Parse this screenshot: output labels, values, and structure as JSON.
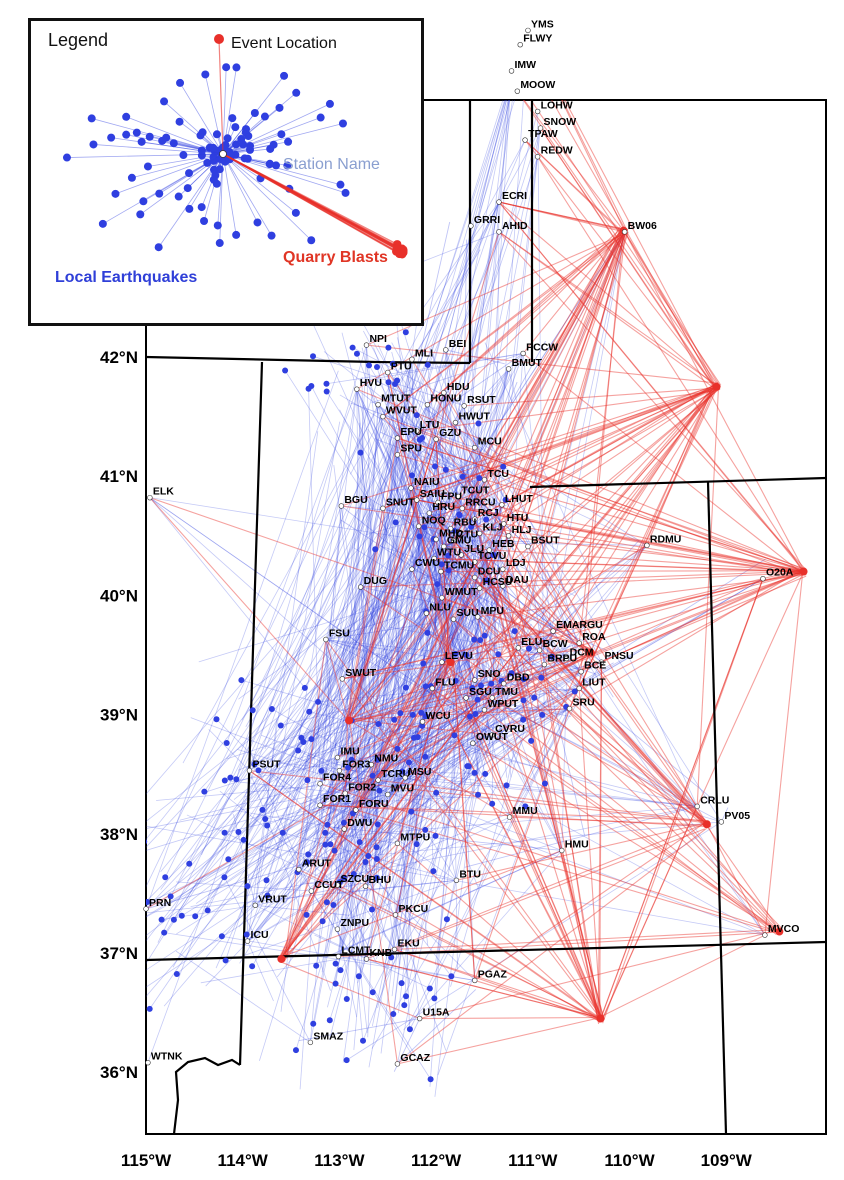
{
  "colors": {
    "earthquake": "#2f3fe0",
    "quarry": "#e8302a",
    "station": "#ffffff",
    "border": "#000000"
  },
  "legend": {
    "title": "Legend",
    "event_location": "Event Location",
    "station_name": "Station Name",
    "quarry_blasts": "Quarry Blasts",
    "local_earthquakes": "Local Earthquakes"
  },
  "latitude_labels": [
    "42°N",
    "41°N",
    "40°N",
    "39°N",
    "38°N",
    "37°N",
    "36°N"
  ],
  "longitude_labels": [
    "115°W",
    "114°W",
    "113°W",
    "112°W",
    "111°W",
    "110°W",
    "109°W"
  ],
  "stations": [
    {
      "name": "YMS",
      "lon": -111.05,
      "lat": 44.74
    },
    {
      "name": "FLWY",
      "lon": -111.13,
      "lat": 44.62
    },
    {
      "name": "IMW",
      "lon": -111.22,
      "lat": 44.4
    },
    {
      "name": "MOOW",
      "lon": -111.16,
      "lat": 44.23
    },
    {
      "name": "LOHW",
      "lon": -110.95,
      "lat": 44.06
    },
    {
      "name": "SNOW",
      "lon": -110.92,
      "lat": 43.92
    },
    {
      "name": "TPAW",
      "lon": -111.08,
      "lat": 43.82
    },
    {
      "name": "REDW",
      "lon": -110.95,
      "lat": 43.68
    },
    {
      "name": "ECRI",
      "lon": -111.35,
      "lat": 43.3
    },
    {
      "name": "GRRI",
      "lon": -111.64,
      "lat": 43.1
    },
    {
      "name": "AHID",
      "lon": -111.35,
      "lat": 43.05
    },
    {
      "name": "BW06",
      "lon": -110.05,
      "lat": 43.05
    },
    {
      "name": "NPI",
      "lon": -112.72,
      "lat": 42.1
    },
    {
      "name": "BEI",
      "lon": -111.9,
      "lat": 42.06
    },
    {
      "name": "PCCW",
      "lon": -111.1,
      "lat": 42.03
    },
    {
      "name": "MLI",
      "lon": -112.25,
      "lat": 41.98
    },
    {
      "name": "PTU",
      "lon": -112.5,
      "lat": 41.87
    },
    {
      "name": "BMUT",
      "lon": -111.25,
      "lat": 41.9
    },
    {
      "name": "HVU",
      "lon": -112.82,
      "lat": 41.73
    },
    {
      "name": "HDU",
      "lon": -111.92,
      "lat": 41.7
    },
    {
      "name": "MTUT",
      "lon": -112.6,
      "lat": 41.6
    },
    {
      "name": "HONU",
      "lon": -112.09,
      "lat": 41.6
    },
    {
      "name": "RSUT",
      "lon": -111.71,
      "lat": 41.59
    },
    {
      "name": "WVUT",
      "lon": -112.55,
      "lat": 41.5
    },
    {
      "name": "HWUT",
      "lon": -111.8,
      "lat": 41.45
    },
    {
      "name": "LTU",
      "lon": -112.2,
      "lat": 41.38
    },
    {
      "name": "EPU",
      "lon": -112.4,
      "lat": 41.32
    },
    {
      "name": "GZU",
      "lon": -112.0,
      "lat": 41.31
    },
    {
      "name": "MCU",
      "lon": -111.6,
      "lat": 41.24
    },
    {
      "name": "SPU",
      "lon": -112.4,
      "lat": 41.18
    },
    {
      "name": "TCU",
      "lon": -111.5,
      "lat": 40.97
    },
    {
      "name": "NAIU",
      "lon": -112.26,
      "lat": 40.9
    },
    {
      "name": "TCUT",
      "lon": -111.77,
      "lat": 40.83
    },
    {
      "name": "SAIU",
      "lon": -112.2,
      "lat": 40.8
    },
    {
      "name": "FPU",
      "lon": -111.98,
      "lat": 40.78
    },
    {
      "name": "LHUT",
      "lon": -111.32,
      "lat": 40.76
    },
    {
      "name": "BGU",
      "lon": -112.98,
      "lat": 40.75
    },
    {
      "name": "SNUT",
      "lon": -112.55,
      "lat": 40.73
    },
    {
      "name": "RRCU",
      "lon": -111.73,
      "lat": 40.73
    },
    {
      "name": "HRU",
      "lon": -112.07,
      "lat": 40.69
    },
    {
      "name": "RCJ",
      "lon": -111.6,
      "lat": 40.64
    },
    {
      "name": "HTU",
      "lon": -111.3,
      "lat": 40.6
    },
    {
      "name": "NOQ",
      "lon": -112.18,
      "lat": 40.58
    },
    {
      "name": "RBU",
      "lon": -111.85,
      "lat": 40.56
    },
    {
      "name": "KLJ",
      "lon": -111.55,
      "lat": 40.52
    },
    {
      "name": "HLJ",
      "lon": -111.25,
      "lat": 40.5
    },
    {
      "name": "MHD",
      "lon": -112.0,
      "lat": 40.47
    },
    {
      "name": "CTU",
      "lon": -111.82,
      "lat": 40.46
    },
    {
      "name": "GMU",
      "lon": -111.92,
      "lat": 40.41
    },
    {
      "name": "BSUT",
      "lon": -111.05,
      "lat": 40.41
    },
    {
      "name": "HEB",
      "lon": -111.45,
      "lat": 40.38
    },
    {
      "name": "RDMU",
      "lon": -109.82,
      "lat": 40.42
    },
    {
      "name": "JLU",
      "lon": -111.74,
      "lat": 40.34
    },
    {
      "name": "WTU",
      "lon": -112.02,
      "lat": 40.31
    },
    {
      "name": "TCVU",
      "lon": -111.6,
      "lat": 40.28
    },
    {
      "name": "LDJ",
      "lon": -111.31,
      "lat": 40.22
    },
    {
      "name": "CWU",
      "lon": -112.25,
      "lat": 40.22
    },
    {
      "name": "TCMU",
      "lon": -111.95,
      "lat": 40.2
    },
    {
      "name": "DCU",
      "lon": -111.6,
      "lat": 40.15
    },
    {
      "name": "DAU",
      "lon": -111.31,
      "lat": 40.08
    },
    {
      "name": "O20A",
      "lon": -108.62,
      "lat": 40.14
    },
    {
      "name": "DUG",
      "lon": -112.78,
      "lat": 40.07
    },
    {
      "name": "HCSU",
      "lon": -111.55,
      "lat": 40.06
    },
    {
      "name": "WMUT",
      "lon": -111.94,
      "lat": 39.98
    },
    {
      "name": "NLU",
      "lon": -112.1,
      "lat": 39.85
    },
    {
      "name": "SUU",
      "lon": -111.82,
      "lat": 39.8
    },
    {
      "name": "MPU",
      "lon": -111.57,
      "lat": 39.82
    },
    {
      "name": "EMARGU",
      "lon": -110.79,
      "lat": 39.7
    },
    {
      "name": "FSU",
      "lon": -113.14,
      "lat": 39.63
    },
    {
      "name": "ROA",
      "lon": -110.52,
      "lat": 39.6
    },
    {
      "name": "ELU",
      "lon": -111.15,
      "lat": 39.56
    },
    {
      "name": "BCW",
      "lon": -110.93,
      "lat": 39.54
    },
    {
      "name": "DCM",
      "lon": -110.65,
      "lat": 39.47
    },
    {
      "name": "PNSU",
      "lon": -110.29,
      "lat": 39.44
    },
    {
      "name": "BRPU",
      "lon": -110.88,
      "lat": 39.42
    },
    {
      "name": "LEVU",
      "lon": -111.94,
      "lat": 39.44
    },
    {
      "name": "BCE",
      "lon": -110.5,
      "lat": 39.36
    },
    {
      "name": "SWUT",
      "lon": -112.97,
      "lat": 39.3
    },
    {
      "name": "SNO",
      "lon": -111.6,
      "lat": 39.29
    },
    {
      "name": "DBD",
      "lon": -111.3,
      "lat": 39.26
    },
    {
      "name": "LIUT",
      "lon": -110.52,
      "lat": 39.22
    },
    {
      "name": "FLU",
      "lon": -112.04,
      "lat": 39.22
    },
    {
      "name": "SGU",
      "lon": -111.69,
      "lat": 39.14
    },
    {
      "name": "TMU",
      "lon": -111.42,
      "lat": 39.14
    },
    {
      "name": "SRU",
      "lon": -110.62,
      "lat": 39.05
    },
    {
      "name": "WPUT",
      "lon": -111.5,
      "lat": 39.04
    },
    {
      "name": "WCU",
      "lon": -112.14,
      "lat": 38.94
    },
    {
      "name": "CVRU",
      "lon": -111.42,
      "lat": 38.83
    },
    {
      "name": "OWUT",
      "lon": -111.62,
      "lat": 38.76
    },
    {
      "name": "IMU",
      "lon": -113.02,
      "lat": 38.64
    },
    {
      "name": "NMU",
      "lon": -112.67,
      "lat": 38.58
    },
    {
      "name": "PSUT",
      "lon": -113.93,
      "lat": 38.53
    },
    {
      "name": "FOR3",
      "lon": -113.0,
      "lat": 38.53
    },
    {
      "name": "TCRU",
      "lon": -112.6,
      "lat": 38.45
    },
    {
      "name": "MSU",
      "lon": -112.32,
      "lat": 38.47
    },
    {
      "name": "FOR4",
      "lon": -113.2,
      "lat": 38.42
    },
    {
      "name": "FOR2",
      "lon": -112.94,
      "lat": 38.34
    },
    {
      "name": "MVU",
      "lon": -112.5,
      "lat": 38.33
    },
    {
      "name": "FORU",
      "lon": -112.83,
      "lat": 38.2
    },
    {
      "name": "FOR1",
      "lon": -113.2,
      "lat": 38.24
    },
    {
      "name": "CRLU",
      "lon": -109.3,
      "lat": 38.23
    },
    {
      "name": "MMU",
      "lon": -111.24,
      "lat": 38.14
    },
    {
      "name": "PV05",
      "lon": -109.05,
      "lat": 38.1
    },
    {
      "name": "DWU",
      "lon": -112.95,
      "lat": 38.04
    },
    {
      "name": "MTPU",
      "lon": -112.4,
      "lat": 37.92
    },
    {
      "name": "HMU",
      "lon": -110.7,
      "lat": 37.86
    },
    {
      "name": "ARUT",
      "lon": -113.42,
      "lat": 37.7
    },
    {
      "name": "BTU",
      "lon": -111.79,
      "lat": 37.61
    },
    {
      "name": "SZCU",
      "lon": -113.02,
      "lat": 37.57
    },
    {
      "name": "BHU",
      "lon": -112.73,
      "lat": 37.56
    },
    {
      "name": "CCUT",
      "lon": -113.29,
      "lat": 37.52
    },
    {
      "name": "VRUT",
      "lon": -113.87,
      "lat": 37.4
    },
    {
      "name": "PRN",
      "lon": -115.0,
      "lat": 37.37
    },
    {
      "name": "PKCU",
      "lon": -112.42,
      "lat": 37.32
    },
    {
      "name": "MVCO",
      "lon": -108.6,
      "lat": 37.15
    },
    {
      "name": "ICU",
      "lon": -113.95,
      "lat": 37.1
    },
    {
      "name": "ZNPU",
      "lon": -113.02,
      "lat": 37.2
    },
    {
      "name": "EKU",
      "lon": -112.43,
      "lat": 37.03
    },
    {
      "name": "LCMT",
      "lon": -113.01,
      "lat": 36.97
    },
    {
      "name": "KNB",
      "lon": -112.72,
      "lat": 36.95
    },
    {
      "name": "PGAZ",
      "lon": -111.6,
      "lat": 36.77
    },
    {
      "name": "U15A",
      "lon": -112.17,
      "lat": 36.45
    },
    {
      "name": "ELK",
      "lon": -114.96,
      "lat": 40.82
    },
    {
      "name": "SMAZ",
      "lon": -113.3,
      "lat": 36.25
    },
    {
      "name": "WTNK",
      "lon": -114.98,
      "lat": 36.08
    },
    {
      "name": "GCAZ",
      "lon": -112.4,
      "lat": 36.07
    }
  ],
  "quarry_hubs": [
    {
      "lon": -109.1,
      "lat": 41.75
    },
    {
      "lon": -110.3,
      "lat": 36.45
    },
    {
      "lon": -110.06,
      "lat": 43.06
    },
    {
      "lon": -108.2,
      "lat": 40.2
    },
    {
      "lon": -113.6,
      "lat": 36.95
    },
    {
      "lon": -111.85,
      "lat": 39.44
    },
    {
      "lon": -112.9,
      "lat": 38.95
    },
    {
      "lon": -109.2,
      "lat": 38.08
    },
    {
      "lon": -108.45,
      "lat": 37.18
    },
    {
      "lon": -110.4,
      "lat": 39.52
    }
  ],
  "earthquake_hubs": [
    {
      "lon": -114.55,
      "lat": 37.35
    },
    {
      "lon": -113.2,
      "lat": 37.75
    },
    {
      "lon": -112.8,
      "lat": 38.5
    },
    {
      "lon": -111.3,
      "lat": 39.2
    },
    {
      "lon": -111.8,
      "lat": 38.85
    },
    {
      "lon": -112.7,
      "lat": 36.55
    },
    {
      "lon": -113.7,
      "lat": 38.55
    },
    {
      "lon": -111.9,
      "lat": 40.6
    },
    {
      "lon": -112.6,
      "lat": 41.7
    }
  ]
}
